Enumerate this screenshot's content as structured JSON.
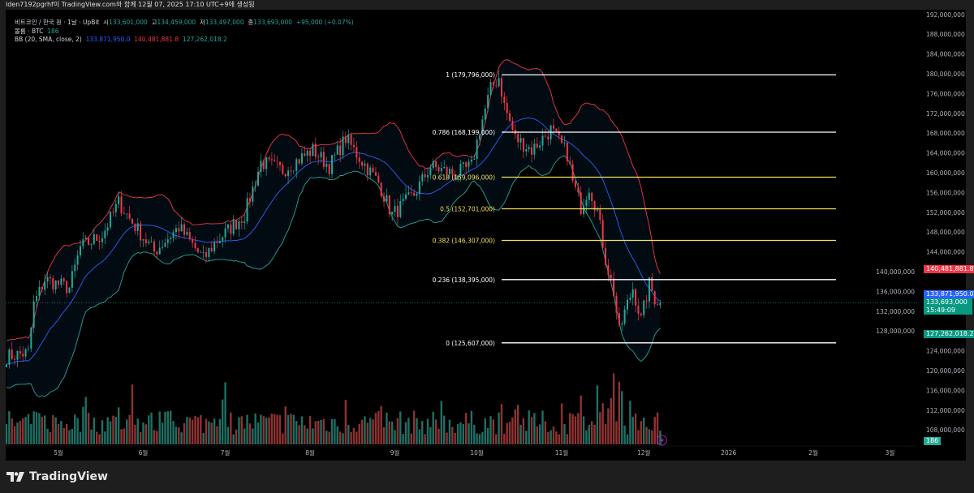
{
  "header": {
    "attribution": "lden7192pgrhf이 TradingView.com와 함께 12월 07, 2025 17:10 UTC+9에 생성됨"
  },
  "legend": {
    "symbol": "비트코인 / 한국 원 · 1날 · UpBit",
    "open_label": "시",
    "open": "133,601,000",
    "high_label": "고",
    "high": "134,459,000",
    "low_label": "저",
    "low": "133,497,000",
    "close_label": "종",
    "close": "133,693,000",
    "change": "+95,000 (+0.07%)",
    "volume_label": "볼륨 · BTC",
    "volume": "186",
    "bb_label": "BB (20, SMA, close, 2)",
    "bb_basis": "133,871,950.0",
    "bb_upper": "140,481,881.8",
    "bb_lower": "127,262,018.2"
  },
  "price_tags": {
    "bb_upper": "140,481,881.8",
    "bb_basis": "133,871,950.0",
    "last_price": "133,693,000",
    "countdown": "15:49:09",
    "bb_lower": "127,262,018.2",
    "volume": "186"
  },
  "colors": {
    "up": "#26a69a",
    "down": "#f23645",
    "bb_basis": "#2962ff",
    "bb_upper": "#f23645",
    "bb_lower": "#26a69a",
    "fib_white": "#ffffff",
    "fib_yellow": "#f5e15a"
  },
  "footer": {
    "brand": "TradingView"
  },
  "chart_data": {
    "type": "candlestick",
    "title": "비트코인 / 한국 원 · 1날 · UpBit",
    "interval": "1D",
    "unit": "KRW",
    "y_ticks": [
      "192,000,000",
      "188,000,000",
      "184,000,000",
      "180,000,000",
      "176,000,000",
      "172,000,000",
      "168,000,000",
      "164,000,000",
      "160,000,000",
      "156,000,000",
      "152,000,000",
      "148,000,000",
      "144,000,000",
      "140,000,000",
      "136,000,000",
      "132,000,000",
      "128,000,000",
      "124,000,000",
      "120,000,000",
      "116,000,000",
      "112,000,000",
      "108,000,000"
    ],
    "ylim": [
      105000000,
      193000000
    ],
    "x_ticks": [
      "5월",
      "6월",
      "7월",
      "8월",
      "9월",
      "10월",
      "11월",
      "12월",
      "2026",
      "2월",
      "3월"
    ],
    "x_tick_dates": [
      "2025-05-01",
      "2025-06-01",
      "2025-07-01",
      "2025-08-01",
      "2025-09-01",
      "2025-10-01",
      "2025-11-01",
      "2025-12-01",
      "2026-01-01",
      "2026-02-01",
      "2026-03-01"
    ],
    "xlim": [
      "2025-04-12",
      "2026-03-20"
    ],
    "approx_close_path": [
      [
        "2025-04-12",
        122.8
      ],
      [
        "2025-04-20",
        123.6
      ],
      [
        "2025-04-22",
        133.4
      ],
      [
        "2025-04-26",
        138.4
      ],
      [
        "2025-05-05",
        136.7
      ],
      [
        "2025-05-09",
        144.9
      ],
      [
        "2025-05-17",
        147.4
      ],
      [
        "2025-05-23",
        154.0
      ],
      [
        "2025-05-27",
        150.7
      ],
      [
        "2025-06-05",
        144.0
      ],
      [
        "2025-06-14",
        149.0
      ],
      [
        "2025-06-23",
        142.5
      ],
      [
        "2025-06-27",
        145.7
      ],
      [
        "2025-07-08",
        151.5
      ],
      [
        "2025-07-14",
        162.1
      ],
      [
        "2025-07-22",
        160.5
      ],
      [
        "2025-08-02",
        164.6
      ],
      [
        "2025-08-08",
        161.3
      ],
      [
        "2025-08-14",
        167.0
      ],
      [
        "2025-08-18",
        163.8
      ],
      [
        "2025-08-26",
        158.0
      ],
      [
        "2025-08-31",
        151.5
      ],
      [
        "2025-09-08",
        155.6
      ],
      [
        "2025-09-14",
        161.3
      ],
      [
        "2025-09-23",
        159.7
      ],
      [
        "2025-09-29",
        161.3
      ],
      [
        "2025-10-02",
        168.7
      ],
      [
        "2025-10-06",
        176.9
      ],
      [
        "2025-10-09",
        179.3
      ],
      [
        "2025-10-11",
        173.6
      ],
      [
        "2025-10-15",
        167.0
      ],
      [
        "2025-10-21",
        164.6
      ],
      [
        "2025-10-28",
        168.7
      ],
      [
        "2025-11-03",
        163.8
      ],
      [
        "2025-11-05",
        158.0
      ],
      [
        "2025-11-08",
        153.1
      ],
      [
        "2025-11-11",
        157.2
      ],
      [
        "2025-11-14",
        152.3
      ],
      [
        "2025-11-17",
        142.5
      ],
      [
        "2025-11-20",
        135.9
      ],
      [
        "2025-11-22",
        127.7
      ],
      [
        "2025-11-24",
        131.8
      ],
      [
        "2025-11-27",
        136.7
      ],
      [
        "2025-11-30",
        130.2
      ],
      [
        "2025-12-03",
        137.5
      ],
      [
        "2025-12-05",
        134.6
      ],
      [
        "2025-12-07",
        133.693
      ]
    ],
    "price_unit_of_path": "million KRW",
    "indicator": {
      "name": "BB (20, SMA, close, 2)",
      "basis": 133871950.0,
      "upper": 140481881.8,
      "lower": 127262018.2
    },
    "fibonacci": [
      {
        "label": "1 (179,796,000)",
        "level": 1,
        "price": 179796000,
        "color": "white"
      },
      {
        "label": "0.786 (168,199,000)",
        "level": 0.786,
        "price": 168199000,
        "color": "white"
      },
      {
        "label": "0.618 (159,096,000)",
        "level": 0.618,
        "price": 159096000,
        "color": "yellow"
      },
      {
        "label": "0.5 (152,701,000)",
        "level": 0.5,
        "price": 152701000,
        "color": "yellow"
      },
      {
        "label": "0.382 (146,307,000)",
        "level": 0.382,
        "price": 146307000,
        "color": "yellow"
      },
      {
        "label": "0.236 (138,395,000)",
        "level": 0.236,
        "price": 138395000,
        "color": "white"
      },
      {
        "label": "0 (125,607,000)",
        "level": 0,
        "price": 125607000,
        "color": "white"
      }
    ],
    "last_price": 133693000,
    "last_volume": 186
  }
}
